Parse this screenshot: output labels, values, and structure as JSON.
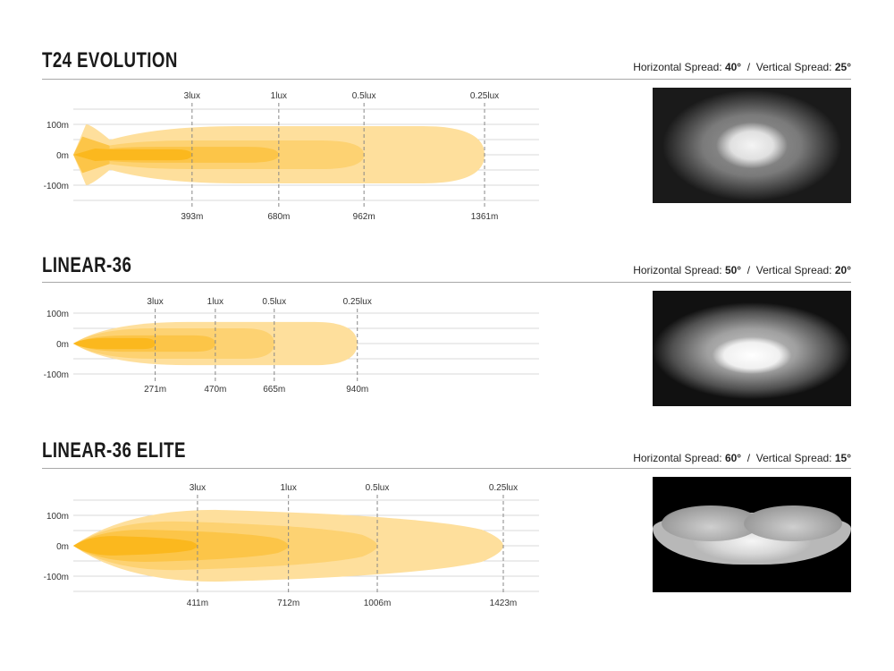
{
  "sections": [
    {
      "title": "T24 EVOLUTION",
      "spread": {
        "h_label": "Horizontal Spread:",
        "h_value": "40°",
        "sep": "/",
        "v_label": "Vertical Spread:",
        "v_value": "25°"
      }
    },
    {
      "title": "LINEAR-36",
      "spread": {
        "h_label": "Horizontal Spread:",
        "h_value": "50°",
        "sep": "/",
        "v_label": "Vertical Spread:",
        "v_value": "20°"
      }
    },
    {
      "title": "LINEAR-36 ELITE",
      "spread": {
        "h_label": "Horizontal Spread:",
        "h_value": "60°",
        "sep": "/",
        "v_label": "Vertical Spread:",
        "v_value": "15°"
      }
    }
  ],
  "colors": {
    "zone_3lux": "#fbb81e",
    "zone_1lux": "#fcc548",
    "zone_0_5lux": "#fdd272",
    "zone_0_25lux": "#fedf9c",
    "grid": "#d8d8d8",
    "marker": "#888888"
  },
  "chart_data": [
    {
      "type": "area",
      "title": "T24 EVOLUTION",
      "ytick_labels": [
        "100m",
        "0m",
        "-100m"
      ],
      "yticks": [
        100,
        0,
        -100
      ],
      "ylim": [
        -150,
        150
      ],
      "xlim": [
        0,
        1540
      ],
      "grid": true,
      "zones": [
        {
          "lux_label": "0.25lux",
          "distance": 1361,
          "distance_label": "1361m",
          "half_width": 94
        },
        {
          "lux_label": "0.5lux",
          "distance": 962,
          "distance_label": "962m",
          "half_width": 47
        },
        {
          "lux_label": "1lux",
          "distance": 680,
          "distance_label": "680m",
          "half_width": 26
        },
        {
          "lux_label": "3lux",
          "distance": 393,
          "distance_label": "393m",
          "half_width": 18
        }
      ],
      "near_field_lobe": {
        "distance": 120,
        "half_width": 100
      }
    },
    {
      "type": "area",
      "title": "LINEAR-36",
      "ytick_labels": [
        "100m",
        "0m",
        "-100m"
      ],
      "yticks": [
        100,
        0,
        -100
      ],
      "ylim": [
        -100,
        100
      ],
      "xlim": [
        0,
        1540
      ],
      "grid": true,
      "zones": [
        {
          "lux_label": "0.25lux",
          "distance": 940,
          "distance_label": "940m",
          "half_width": 71
        },
        {
          "lux_label": "0.5lux",
          "distance": 665,
          "distance_label": "665m",
          "half_width": 50
        },
        {
          "lux_label": "1lux",
          "distance": 470,
          "distance_label": "470m",
          "half_width": 27
        },
        {
          "lux_label": "3lux",
          "distance": 271,
          "distance_label": "271m",
          "half_width": 18
        }
      ]
    },
    {
      "type": "area",
      "title": "LINEAR-36 ELITE",
      "ytick_labels": [
        "100m",
        "0m",
        "-100m"
      ],
      "yticks": [
        100,
        0,
        -100
      ],
      "ylim": [
        -150,
        150
      ],
      "xlim": [
        0,
        1540
      ],
      "grid": true,
      "zones": [
        {
          "lux_label": "0.25lux",
          "distance": 1423,
          "distance_label": "1423m",
          "half_width": 118
        },
        {
          "lux_label": "0.5lux",
          "distance": 1006,
          "distance_label": "1006m",
          "half_width": 80
        },
        {
          "lux_label": "1lux",
          "distance": 712,
          "distance_label": "712m",
          "half_width": 53
        },
        {
          "lux_label": "3lux",
          "distance": 411,
          "distance_label": "411m",
          "half_width": 32
        }
      ]
    }
  ]
}
